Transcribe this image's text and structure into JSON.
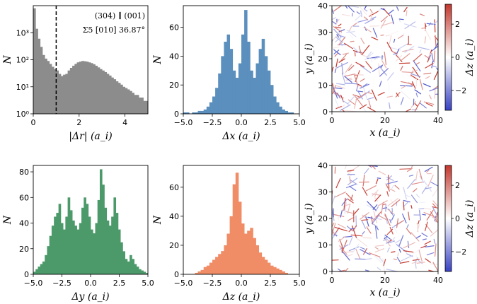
{
  "chart_data": [
    {
      "id": "p1",
      "type": "bar",
      "yscale": "log",
      "xlabel": "|Δr| (a_i)",
      "ylabel": "N",
      "xlim": [
        0,
        5
      ],
      "ylim_exp": [
        0,
        4
      ],
      "xticks": [
        0,
        2,
        4
      ],
      "yticks": [
        "10⁰",
        "10¹",
        "10²",
        "10³"
      ],
      "color": "#8c8c8c",
      "cutoff": 1.0,
      "annotation": [
        "(304) ∥ (001)",
        "Σ5 [010] 36.87°"
      ],
      "values": [
        8000,
        1400,
        600,
        300,
        150,
        110,
        90,
        70,
        55,
        45,
        40,
        30,
        25,
        28,
        30,
        40,
        50,
        60,
        70,
        80,
        85,
        90,
        88,
        85,
        80,
        75,
        68,
        60,
        52,
        45,
        40,
        35,
        30,
        26,
        22,
        19,
        16,
        14,
        12,
        10,
        9,
        8,
        7,
        6,
        5,
        5,
        4,
        4,
        3,
        3
      ]
    },
    {
      "id": "p2",
      "type": "bar",
      "xlabel": "Δx (a_i)",
      "ylabel": "N",
      "xlim": [
        -5,
        5
      ],
      "ylim": [
        0,
        75
      ],
      "xticks": [
        "−5.0",
        "−2.5",
        "0.0",
        "2.5",
        "5.0"
      ],
      "yticks": [
        0,
        20,
        40,
        60
      ],
      "color": "#5b8fbd",
      "values": [
        1,
        1,
        0,
        1,
        1,
        2,
        2,
        3,
        5,
        8,
        12,
        18,
        28,
        40,
        50,
        55,
        45,
        30,
        25,
        35,
        55,
        72,
        50,
        30,
        25,
        35,
        45,
        52,
        40,
        30,
        20,
        12,
        8,
        5,
        3,
        2,
        1,
        1,
        0,
        0
      ]
    },
    {
      "id": "p3",
      "type": "map",
      "xlabel": "x (a_i)",
      "ylabel": "y (a_i)",
      "xlim": [
        0,
        40
      ],
      "ylim": [
        0,
        40
      ],
      "xticks": [
        0,
        20,
        40
      ],
      "yticks": [
        0,
        10,
        20,
        30,
        40
      ],
      "colorbar": {
        "label": "Δz (a_i)",
        "ticks": [
          2,
          0,
          -2
        ],
        "range": [
          -3.2,
          3.2
        ]
      }
    },
    {
      "id": "p4",
      "type": "bar",
      "xlabel": "Δy (a_i)",
      "ylabel": "N",
      "xlim": [
        -5,
        5
      ],
      "ylim": [
        0,
        85
      ],
      "xticks": [
        "−5.0",
        "−2.5",
        "0.0",
        "2.5",
        "5.0"
      ],
      "yticks": [
        0,
        20,
        40,
        60,
        80
      ],
      "color": "#4c9a6a",
      "values": [
        2,
        4,
        6,
        8,
        10,
        15,
        22,
        30,
        38,
        45,
        48,
        55,
        40,
        35,
        45,
        60,
        50,
        42,
        38,
        35,
        40,
        52,
        60,
        55,
        45,
        35,
        32,
        40,
        58,
        82,
        70,
        52,
        42,
        38,
        45,
        60,
        48,
        35,
        25,
        18,
        12,
        10,
        15,
        12,
        8,
        6,
        4,
        3,
        2,
        1
      ]
    },
    {
      "id": "p5",
      "type": "bar",
      "xlabel": "Δz (a_i)",
      "ylabel": "N",
      "xlim": [
        -5,
        5
      ],
      "ylim": [
        0,
        75
      ],
      "xticks": [
        "−5.0",
        "−2.5",
        "0.0",
        "2.5",
        "5.0"
      ],
      "yticks": [
        0,
        20,
        40,
        60
      ],
      "color": "#f08c66",
      "values": [
        0,
        0,
        0,
        0,
        1,
        2,
        3,
        5,
        6,
        8,
        10,
        12,
        14,
        16,
        20,
        28,
        40,
        62,
        70,
        50,
        35,
        28,
        30,
        32,
        25,
        20,
        15,
        12,
        10,
        8,
        6,
        5,
        4,
        3,
        2,
        1,
        0,
        0,
        0,
        0
      ]
    },
    {
      "id": "p6",
      "type": "map",
      "xlabel": "x (a_i)",
      "ylabel": "y (a_i)",
      "xlim": [
        0,
        40
      ],
      "ylim": [
        0,
        40
      ],
      "xticks": [
        0,
        20,
        40
      ],
      "yticks": [
        0,
        10,
        20,
        30,
        40
      ],
      "colorbar": {
        "label": "Δz (a_i)",
        "ticks": [
          2,
          0,
          -2
        ],
        "range": [
          -3.2,
          3.2
        ]
      }
    }
  ]
}
